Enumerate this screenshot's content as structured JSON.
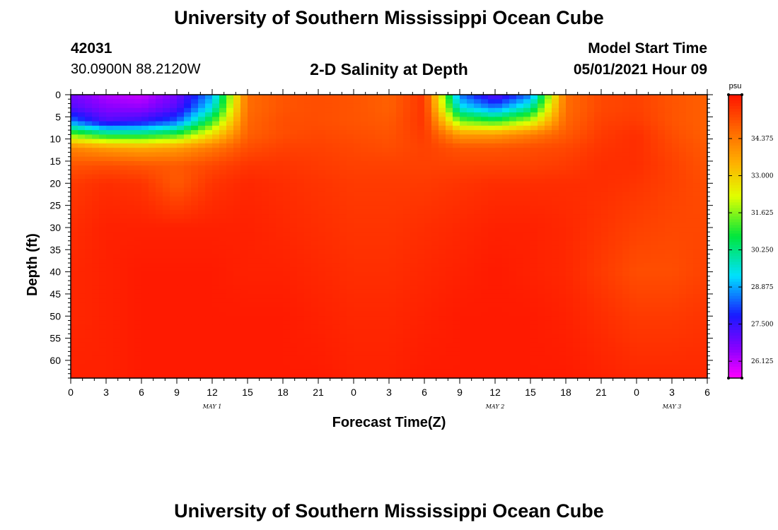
{
  "header": {
    "title": "University of Southern Mississippi Ocean Cube",
    "station_id": "42031",
    "location": "30.0900N  88.2120W",
    "plot_title": "2-D Salinity at Depth",
    "model_start_label": "Model Start Time",
    "model_start_value": "05/01/2021 Hour 09"
  },
  "footer": {
    "title": "University of Southern Mississippi Ocean Cube"
  },
  "chart_data": {
    "type": "heatmap",
    "title": "2-D Salinity at Depth",
    "xlabel": "Forecast Time(Z)",
    "ylabel": "Depth (ft)",
    "x_hours": [
      0,
      3,
      6,
      9,
      12,
      15,
      18,
      21,
      24,
      27,
      30,
      33,
      36,
      39,
      42,
      45,
      48,
      51,
      54
    ],
    "x_tick_labels": [
      "0",
      "3",
      "6",
      "9",
      "12",
      "15",
      "18",
      "21",
      "0",
      "3",
      "6",
      "9",
      "12",
      "15",
      "18",
      "21",
      "0",
      "3",
      "6"
    ],
    "day_labels": [
      {
        "label": "MAY 1",
        "hour": 12
      },
      {
        "label": "MAY 2",
        "hour": 36
      },
      {
        "label": "MAY 3",
        "hour": 51
      }
    ],
    "y_depths_ft": [
      0,
      5,
      10,
      15,
      20,
      25,
      30,
      35,
      40,
      45,
      50,
      55,
      60
    ],
    "y_tick_labels": [
      "0",
      "5",
      "10",
      "15",
      "20",
      "25",
      "30",
      "35",
      "40",
      "45",
      "50",
      "55",
      "60"
    ],
    "xlim": [
      0,
      54
    ],
    "ylim": [
      64,
      0
    ],
    "colorbar": {
      "unit": "psu",
      "min": 25.5,
      "max": 36.0,
      "tick_values": [
        26.125,
        27.5,
        28.875,
        30.25,
        31.625,
        33.0,
        34.375
      ],
      "tick_labels": [
        "26.125",
        "27.500",
        "28.875",
        "30.250",
        "31.625",
        "33.000",
        "34.375"
      ]
    },
    "salinity_psu": {
      "depth_ft": [
        0,
        3,
        6,
        9,
        12,
        16,
        20,
        30,
        40,
        50,
        64
      ],
      "rows": [
        [
          26.8,
          26.2,
          26.0,
          26.8,
          28.8,
          34.6,
          35.0,
          35.1,
          35.0,
          34.8,
          35.5,
          28.5,
          27.0,
          28.5,
          34.6,
          35.2,
          35.3,
          35.0,
          34.8
        ],
        [
          27.2,
          26.6,
          26.5,
          27.2,
          29.5,
          34.6,
          35.0,
          35.1,
          35.0,
          34.8,
          35.5,
          29.5,
          28.5,
          30.0,
          34.6,
          35.2,
          35.3,
          35.0,
          34.8
        ],
        [
          28.5,
          27.2,
          27.5,
          28.3,
          31.0,
          34.7,
          35.1,
          35.1,
          35.0,
          34.9,
          35.5,
          31.5,
          31.0,
          32.0,
          34.7,
          35.3,
          35.4,
          35.0,
          34.8
        ],
        [
          31.5,
          30.5,
          30.5,
          31.0,
          32.8,
          34.8,
          35.1,
          35.2,
          35.1,
          35.0,
          35.4,
          33.8,
          33.8,
          34.3,
          34.9,
          35.4,
          35.6,
          35.1,
          34.8
        ],
        [
          34.2,
          33.8,
          33.6,
          33.8,
          34.4,
          35.1,
          35.3,
          35.3,
          35.2,
          35.1,
          35.3,
          35.0,
          35.0,
          35.1,
          35.2,
          35.5,
          35.6,
          35.2,
          34.9
        ],
        [
          35.0,
          35.1,
          35.0,
          34.9,
          35.2,
          35.5,
          35.5,
          35.4,
          35.3,
          35.3,
          35.3,
          35.3,
          35.3,
          35.3,
          35.4,
          35.6,
          35.6,
          35.3,
          35.0
        ],
        [
          35.4,
          35.6,
          35.5,
          34.9,
          35.5,
          35.7,
          35.6,
          35.5,
          35.4,
          35.4,
          35.4,
          35.5,
          35.6,
          35.6,
          35.6,
          35.6,
          35.5,
          35.3,
          35.1
        ],
        [
          35.6,
          35.8,
          35.8,
          35.8,
          35.8,
          35.8,
          35.7,
          35.6,
          35.5,
          35.5,
          35.6,
          35.7,
          35.8,
          35.8,
          35.7,
          35.5,
          35.3,
          35.2,
          35.2
        ],
        [
          35.7,
          35.8,
          35.9,
          35.9,
          35.9,
          35.8,
          35.8,
          35.7,
          35.6,
          35.6,
          35.7,
          35.8,
          35.9,
          35.8,
          35.7,
          35.4,
          35.1,
          35.1,
          35.3
        ],
        [
          35.7,
          35.8,
          35.9,
          35.9,
          35.9,
          35.9,
          35.9,
          35.8,
          35.7,
          35.7,
          35.8,
          35.9,
          35.9,
          35.9,
          35.8,
          35.6,
          35.4,
          35.4,
          35.5
        ],
        [
          35.8,
          35.8,
          35.9,
          35.9,
          35.9,
          35.9,
          35.9,
          35.9,
          35.8,
          35.8,
          35.9,
          35.9,
          35.9,
          35.9,
          35.9,
          35.8,
          35.7,
          35.7,
          35.7
        ]
      ]
    }
  }
}
